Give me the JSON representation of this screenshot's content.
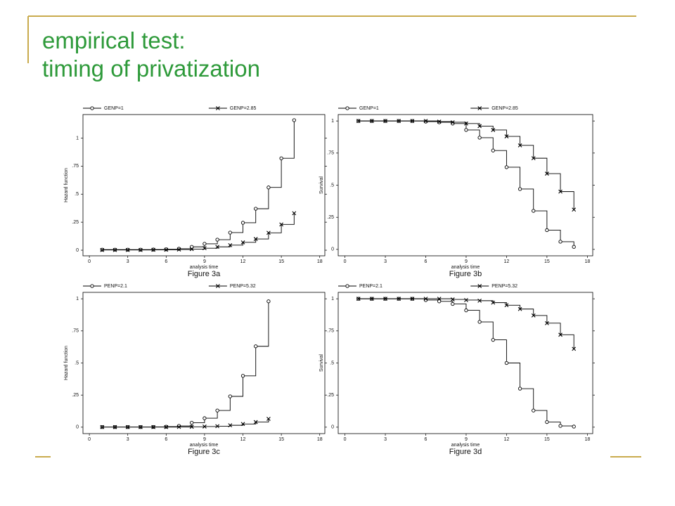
{
  "slide": {
    "title": [
      "empirical test:",
      "timing of privatization"
    ]
  },
  "chart_data": [
    {
      "type": "line",
      "step": true,
      "title": "Figure 3a",
      "x_label": "analysis time",
      "y_label": "Hazard function",
      "x": [
        1,
        2,
        3,
        4,
        5,
        6,
        7,
        8,
        9,
        10,
        11,
        12,
        13,
        14,
        15,
        16
      ],
      "series": [
        {
          "name": "GENP=1",
          "color": "#000000",
          "marker": "circle",
          "values": [
            0.005,
            0.005,
            0.005,
            0.005,
            0.006,
            0.008,
            0.013,
            0.03,
            0.057,
            0.094,
            0.157,
            0.245,
            0.37,
            0.56,
            0.82,
            1.16
          ]
        },
        {
          "name": "GENP=2.85",
          "color": "#000000",
          "marker": "x",
          "values": [
            0.002,
            0.002,
            0.002,
            0.002,
            0.003,
            0.004,
            0.006,
            0.01,
            0.018,
            0.03,
            0.045,
            0.07,
            0.1,
            0.155,
            0.23,
            0.33
          ]
        }
      ],
      "xlim": [
        -0.5,
        18.4
      ],
      "ylim": [
        -0.05,
        1.21
      ],
      "xticks": [
        0,
        3,
        6,
        9,
        12,
        15,
        18
      ],
      "yticks": [
        0,
        {
          "value": 0.25,
          "label": ".25"
        },
        {
          "value": 0.5,
          "label": ".5"
        },
        {
          "value": 0.75,
          "label": ".75"
        },
        1
      ]
    },
    {
      "type": "line",
      "step": true,
      "title": "Figure 3b",
      "x_label": "analysis time",
      "y_label": "Survival",
      "x": [
        1,
        2,
        3,
        4,
        5,
        6,
        7,
        8,
        9,
        10,
        11,
        12,
        13,
        14,
        15,
        16,
        17
      ],
      "series": [
        {
          "name": "GENP=1",
          "color": "#000000",
          "marker": "circle",
          "values": [
            1,
            1,
            1,
            1,
            1,
            0.995,
            0.99,
            0.98,
            0.93,
            0.87,
            0.77,
            0.64,
            0.47,
            0.3,
            0.15,
            0.06,
            0.02
          ]
        },
        {
          "name": "GENP=2.85",
          "color": "#000000",
          "marker": "x",
          "values": [
            1,
            1,
            1,
            1,
            1,
            1,
            0.995,
            0.99,
            0.98,
            0.96,
            0.93,
            0.88,
            0.81,
            0.71,
            0.59,
            0.45,
            0.31
          ]
        }
      ],
      "xlim": [
        -0.5,
        18.4
      ],
      "ylim": [
        -0.05,
        1.05
      ],
      "xticks": [
        0,
        3,
        6,
        9,
        12,
        15,
        18
      ],
      "yticks": [
        0,
        {
          "value": 0.25,
          "label": ".25"
        },
        {
          "value": 0.5,
          "label": ".5"
        },
        {
          "value": 0.75,
          "label": ".75"
        },
        1
      ]
    },
    {
      "type": "line",
      "step": true,
      "title": "Figure 3c",
      "x_label": "analysis time",
      "y_label": "Hazard function",
      "x": [
        1,
        2,
        3,
        4,
        5,
        6,
        7,
        8,
        9,
        10,
        11,
        12,
        13,
        14
      ],
      "series": [
        {
          "name": "PENP=2.1",
          "color": "#000000",
          "marker": "circle",
          "values": [
            0.001,
            0.001,
            0.001,
            0.001,
            0.002,
            0.004,
            0.01,
            0.035,
            0.07,
            0.13,
            0.24,
            0.4,
            0.63,
            0.98
          ]
        },
        {
          "name": "PENP=5.32",
          "color": "#000000",
          "marker": "x",
          "values": [
            0.001,
            0.001,
            0.001,
            0.001,
            0.001,
            0.001,
            0.002,
            0.003,
            0.005,
            0.008,
            0.015,
            0.025,
            0.04,
            0.065
          ]
        }
      ],
      "xlim": [
        -0.5,
        18.4
      ],
      "ylim": [
        -0.05,
        1.05
      ],
      "xticks": [
        0,
        3,
        6,
        9,
        12,
        15,
        18
      ],
      "yticks": [
        0,
        {
          "value": 0.25,
          "label": ".25"
        },
        {
          "value": 0.5,
          "label": ".5"
        },
        {
          "value": 0.75,
          "label": ".75"
        },
        1
      ]
    },
    {
      "type": "line",
      "step": true,
      "title": "Figure 3d",
      "x_label": "analysis time",
      "y_label": "Survival",
      "x": [
        1,
        2,
        3,
        4,
        5,
        6,
        7,
        8,
        9,
        10,
        11,
        12,
        13,
        14,
        15,
        16,
        17
      ],
      "series": [
        {
          "name": "PENP=2.1",
          "color": "#000000",
          "marker": "circle",
          "values": [
            1,
            1,
            1,
            1,
            1,
            0.99,
            0.98,
            0.96,
            0.91,
            0.82,
            0.68,
            0.5,
            0.3,
            0.13,
            0.04,
            0.01,
            0.005
          ]
        },
        {
          "name": "PENP=5.32",
          "color": "#000000",
          "marker": "x",
          "values": [
            1,
            1,
            1,
            1,
            1,
            1,
            1,
            0.995,
            0.99,
            0.985,
            0.97,
            0.95,
            0.92,
            0.87,
            0.81,
            0.72,
            0.61
          ]
        }
      ],
      "xlim": [
        -0.5,
        18.4
      ],
      "ylim": [
        -0.05,
        1.05
      ],
      "xticks": [
        0,
        3,
        6,
        9,
        12,
        15,
        18
      ],
      "yticks": [
        0,
        {
          "value": 0.25,
          "label": ".25"
        },
        {
          "value": 0.5,
          "label": ".5"
        },
        {
          "value": 0.75,
          "label": ".75"
        },
        1
      ]
    }
  ]
}
